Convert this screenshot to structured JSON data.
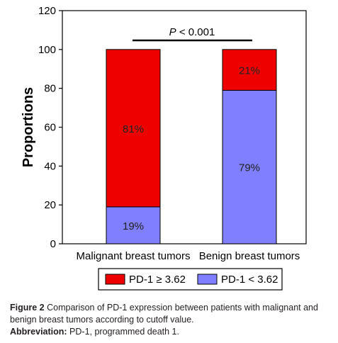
{
  "chart_data": {
    "type": "bar",
    "stacked": true,
    "categories": [
      "Malignant breast tumors",
      "Benign breast tumors"
    ],
    "series": [
      {
        "name": "PD-1 < 3.62",
        "values": [
          19,
          79
        ],
        "labels": [
          "19%",
          "79%"
        ],
        "color": "#7f7fff"
      },
      {
        "name": "PD-1 ≥ 3.62",
        "values": [
          81,
          21
        ],
        "labels": [
          "81%",
          "21%"
        ],
        "color": "#ee0000"
      }
    ],
    "ylabel": "Proportions",
    "ylim": [
      0,
      120
    ],
    "yticks": [
      "0",
      "20",
      "40",
      "60",
      "80",
      "100",
      "120"
    ],
    "annotation": {
      "prefix": "P",
      "text": " < 0.001"
    },
    "legend_order": [
      1,
      0
    ],
    "legend_position": "bottom"
  },
  "caption": {
    "figure_label": "Figure 2",
    "figure_text": " Comparison of PD-1 expression between patients with malignant and benign breast tumors according to cutoff value.",
    "abbrev_label": "Abbreviation:",
    "abbrev_text": " PD-1, programmed death 1."
  }
}
